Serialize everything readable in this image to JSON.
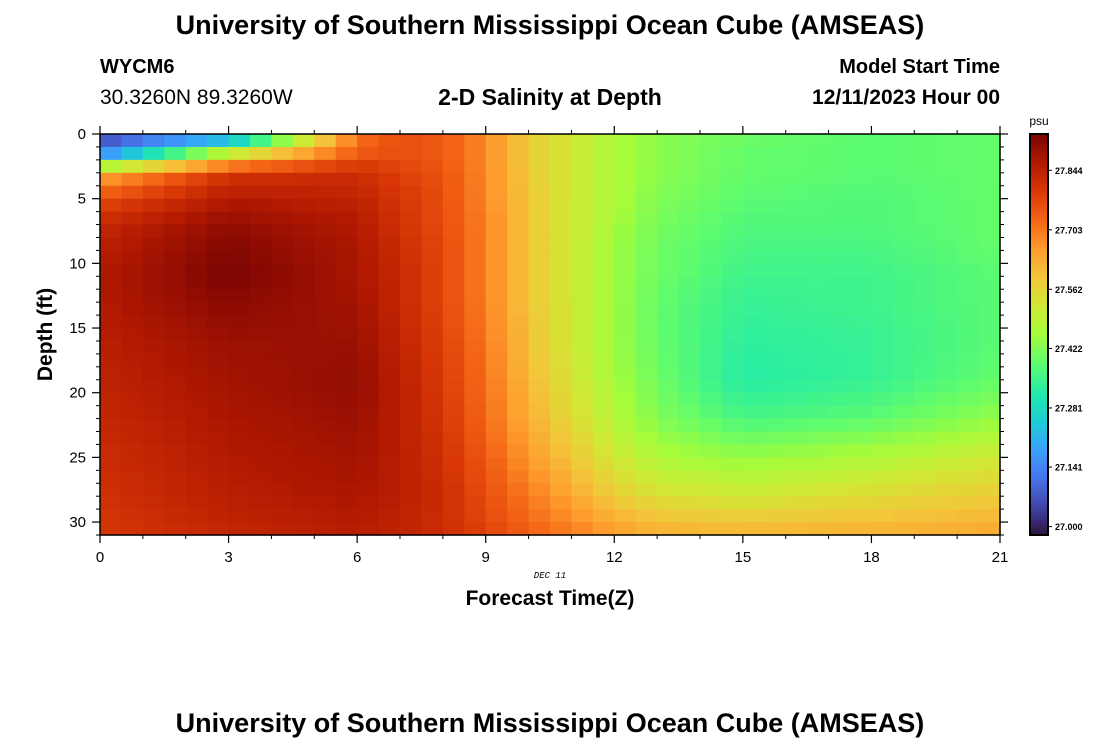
{
  "header": {
    "title": "University of Southern Mississippi Ocean Cube (AMSEAS)",
    "station_id": "WYCM6",
    "coordinates": "30.3260N  89.3260W",
    "plot_title": "2-D Salinity at Depth",
    "model_start_label": "Model Start Time",
    "model_start_value": "12/11/2023 Hour 00"
  },
  "footer": {
    "title": "University of Southern Mississippi Ocean Cube (AMSEAS)"
  },
  "chart_data": {
    "type": "heatmap",
    "title": "2-D Salinity at Depth",
    "xlabel": "Forecast Time(Z)",
    "ylabel": "Depth (ft)",
    "date_label": "DEC 11",
    "x_ticks": [
      0,
      3,
      6,
      9,
      12,
      15,
      18,
      21
    ],
    "y_ticks": [
      0,
      5,
      10,
      15,
      20,
      25,
      30
    ],
    "xlim": [
      0,
      21
    ],
    "ylim": [
      0,
      31
    ],
    "colorbar": {
      "unit": "psu",
      "ticks": [
        27.0,
        27.141,
        27.281,
        27.422,
        27.562,
        27.703,
        27.844
      ],
      "tick_labels": [
        "27.000",
        "27.141",
        "27.281",
        "27.422",
        "27.562",
        "27.703",
        "27.844"
      ],
      "range": [
        26.98,
        27.93
      ],
      "colors": [
        "#30123b",
        "#4145ab",
        "#4675ed",
        "#39a2fc",
        "#1bcfd4",
        "#24eca6",
        "#61fc6c",
        "#a4fc3b",
        "#d1e834",
        "#f3c63a",
        "#fe9b2d",
        "#f36315",
        "#d93806",
        "#b11901",
        "#7a0403"
      ]
    },
    "depth_rows": [
      0,
      1.5,
      3,
      5,
      7,
      9,
      11,
      13,
      16,
      19,
      22,
      25,
      28,
      30,
      31
    ],
    "time_columns": [
      0,
      3,
      6,
      7,
      8,
      9,
      10,
      11,
      12,
      13,
      15,
      18,
      21
    ],
    "salinity_grid": [
      [
        27.03,
        27.1,
        27.7,
        27.76,
        27.74,
        27.68,
        27.58,
        27.52,
        27.47,
        27.43,
        27.4,
        27.38,
        27.39
      ],
      [
        27.15,
        27.5,
        27.74,
        27.76,
        27.74,
        27.68,
        27.58,
        27.52,
        27.47,
        27.43,
        27.39,
        27.38,
        27.39
      ],
      [
        27.62,
        27.8,
        27.82,
        27.78,
        27.75,
        27.68,
        27.58,
        27.52,
        27.47,
        27.43,
        27.39,
        27.38,
        27.39
      ],
      [
        27.76,
        27.86,
        27.84,
        27.8,
        27.76,
        27.68,
        27.59,
        27.52,
        27.47,
        27.42,
        27.38,
        27.37,
        27.39
      ],
      [
        27.83,
        27.9,
        27.86,
        27.81,
        27.76,
        27.69,
        27.59,
        27.52,
        27.46,
        27.41,
        27.37,
        27.37,
        27.39
      ],
      [
        27.85,
        27.92,
        27.87,
        27.82,
        27.77,
        27.69,
        27.59,
        27.52,
        27.45,
        27.4,
        27.36,
        27.36,
        27.39
      ],
      [
        27.86,
        27.93,
        27.87,
        27.83,
        27.77,
        27.69,
        27.59,
        27.52,
        27.45,
        27.4,
        27.35,
        27.35,
        27.38
      ],
      [
        27.86,
        27.91,
        27.88,
        27.83,
        27.77,
        27.69,
        27.59,
        27.52,
        27.45,
        27.39,
        27.34,
        27.35,
        27.38
      ],
      [
        27.85,
        27.89,
        27.89,
        27.84,
        27.78,
        27.7,
        27.6,
        27.52,
        27.45,
        27.39,
        27.33,
        27.34,
        27.38
      ],
      [
        27.84,
        27.88,
        27.9,
        27.85,
        27.79,
        27.71,
        27.61,
        27.53,
        27.46,
        27.4,
        27.32,
        27.34,
        27.39
      ],
      [
        27.83,
        27.87,
        27.89,
        27.85,
        27.8,
        27.72,
        27.63,
        27.55,
        27.48,
        27.42,
        27.36,
        27.38,
        27.44
      ],
      [
        27.82,
        27.86,
        27.88,
        27.85,
        27.81,
        27.74,
        27.66,
        27.59,
        27.52,
        27.47,
        27.44,
        27.47,
        27.52
      ],
      [
        27.81,
        27.85,
        27.87,
        27.85,
        27.82,
        27.76,
        27.7,
        27.64,
        27.58,
        27.54,
        27.52,
        27.55,
        27.58
      ],
      [
        27.8,
        27.84,
        27.86,
        27.84,
        27.82,
        27.77,
        27.72,
        27.68,
        27.63,
        27.6,
        27.59,
        27.6,
        27.62
      ],
      [
        27.8,
        27.83,
        27.85,
        27.84,
        27.82,
        27.78,
        27.74,
        27.7,
        27.66,
        27.63,
        27.62,
        27.63,
        27.64
      ]
    ]
  }
}
